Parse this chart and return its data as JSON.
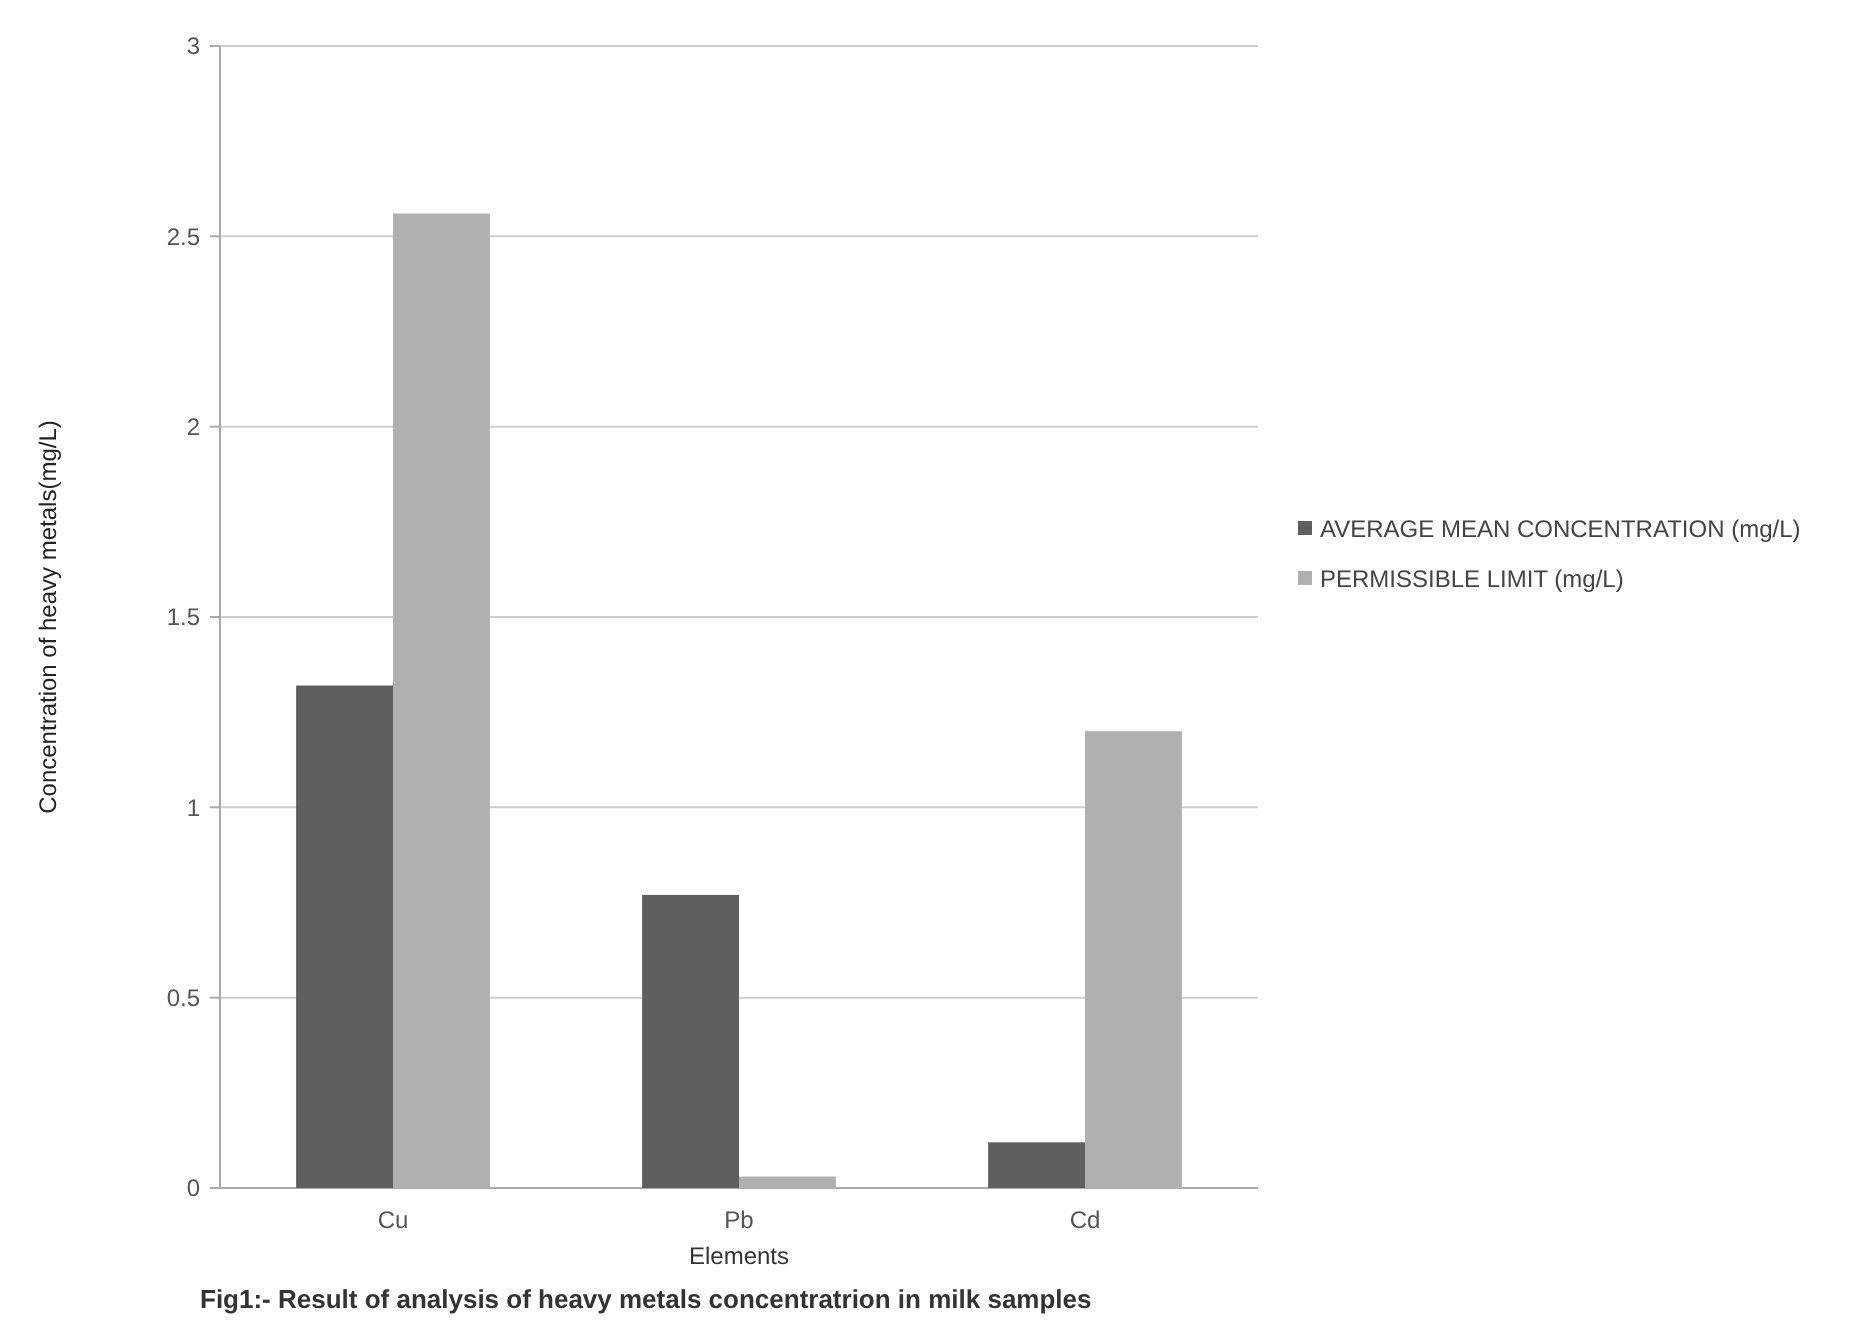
{
  "chart_data": {
    "type": "bar",
    "categories": [
      "Cu",
      "Pb",
      "Cd"
    ],
    "series": [
      {
        "name": "AVERAGE MEAN CONCENTRATION (mg/L)",
        "color": "#5f5f5f",
        "values": [
          1.32,
          0.77,
          0.12
        ]
      },
      {
        "name": "PERMISSIBLE LIMIT  (mg/L)",
        "color": "#b0b0b0",
        "values": [
          2.56,
          0.03,
          1.2
        ]
      }
    ],
    "xlabel": "Elements",
    "ylabel": "Concentration of heavy metals(mg/L)",
    "ylim": [
      0,
      3
    ],
    "yticks": [
      0,
      0.5,
      1,
      1.5,
      2,
      2.5,
      3
    ],
    "grid": "y",
    "legend": "right",
    "annotations": [
      "Fig1:- Result of analysis of heavy metals  concentratrion in milk samples"
    ]
  }
}
